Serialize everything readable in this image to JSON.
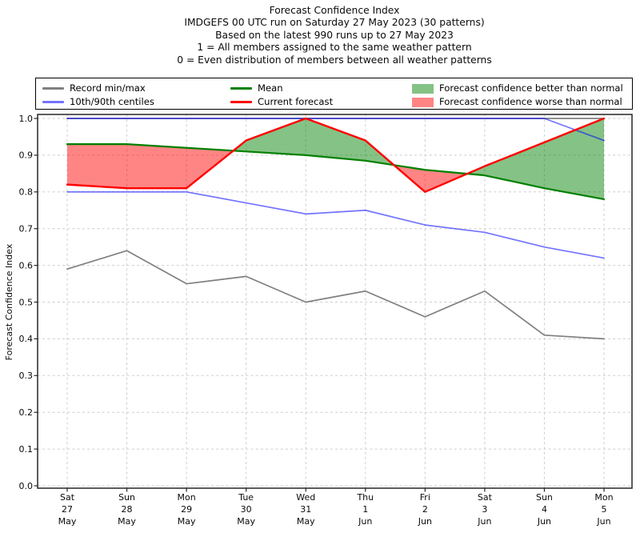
{
  "header": {
    "lines": [
      "Forecast Confidence Index",
      "IMDGEFS 00 UTC run on Saturday 27 May 2023 (30 patterns)",
      "Based on the latest 990 runs up to 27 May 2023",
      "1 = All members assigned to the same weather pattern",
      "0 = Even distribution of members between all weather patterns"
    ]
  },
  "legend": {
    "entries": [
      {
        "label": "Record min/max",
        "swatch": "line",
        "color": "#808080",
        "row": 0,
        "col": 0
      },
      {
        "label": "10th/90th centiles",
        "swatch": "line",
        "color": "rgba(0,0,255,0.55)",
        "row": 1,
        "col": 0
      },
      {
        "label": "Mean",
        "swatch": "line",
        "color": "#008000",
        "row": 0,
        "col": 1
      },
      {
        "label": "Current forecast",
        "swatch": "line",
        "color": "#ff0000",
        "row": 1,
        "col": 1
      },
      {
        "label": "Forecast confidence better than normal",
        "swatch": "patch",
        "color": "rgba(0,128,0,0.48)",
        "row": 0,
        "col": 2
      },
      {
        "label": "Forecast confidence worse than normal",
        "swatch": "patch",
        "color": "rgba(255,0,0,0.48)",
        "row": 1,
        "col": 2
      }
    ]
  },
  "chart_data": {
    "type": "line",
    "title": "Forecast Confidence Index",
    "xlabel": "",
    "ylabel": "Forecast Confidence Index",
    "ylim": [
      0.0,
      1.01
    ],
    "grid": true,
    "legend_position": "top",
    "yticks": [
      0.0,
      0.1,
      0.2,
      0.3,
      0.4,
      0.5,
      0.6,
      0.7,
      0.8,
      0.9,
      1.0
    ],
    "categories": [
      [
        "Sat",
        "27",
        "May"
      ],
      [
        "Sun",
        "28",
        "May"
      ],
      [
        "Mon",
        "29",
        "May"
      ],
      [
        "Tue",
        "30",
        "May"
      ],
      [
        "Wed",
        "31",
        "May"
      ],
      [
        "Thu",
        "1",
        "Jun"
      ],
      [
        "Fri",
        "2",
        "Jun"
      ],
      [
        "Sat",
        "3",
        "Jun"
      ],
      [
        "Sun",
        "4",
        "Jun"
      ],
      [
        "Mon",
        "5",
        "Jun"
      ]
    ],
    "series": [
      {
        "name": "Record max",
        "legend_group": "Record min/max",
        "color": "#808080",
        "width": 1.7,
        "values": [
          1.0,
          1.0,
          1.0,
          1.0,
          1.0,
          1.0,
          1.0,
          1.0,
          1.0,
          1.0
        ]
      },
      {
        "name": "Record min",
        "legend_group": "Record min/max",
        "color": "#808080",
        "width": 1.7,
        "values": [
          0.59,
          0.64,
          0.55,
          0.57,
          0.5,
          0.53,
          0.46,
          0.53,
          0.41,
          0.4
        ]
      },
      {
        "name": "90th centile",
        "legend_group": "10th/90th centiles",
        "color": "rgba(0,0,255,0.55)",
        "width": 1.7,
        "values": [
          1.0,
          1.0,
          1.0,
          1.0,
          1.0,
          1.0,
          1.0,
          1.0,
          1.0,
          0.94
        ]
      },
      {
        "name": "10th centile",
        "legend_group": "10th/90th centiles",
        "color": "rgba(0,0,255,0.55)",
        "width": 1.7,
        "values": [
          0.8,
          0.8,
          0.8,
          0.77,
          0.74,
          0.75,
          0.71,
          0.69,
          0.65,
          0.62
        ]
      },
      {
        "name": "Mean",
        "legend_group": "Mean",
        "color": "#008000",
        "width": 2.2,
        "values": [
          0.93,
          0.93,
          0.92,
          0.91,
          0.9,
          0.885,
          0.86,
          0.845,
          0.81,
          0.78
        ]
      },
      {
        "name": "Current forecast",
        "legend_group": "Current forecast",
        "color": "#ff0000",
        "width": 2.4,
        "values": [
          0.82,
          0.81,
          0.81,
          0.94,
          1.0,
          0.94,
          0.8,
          0.87,
          0.935,
          1.0
        ]
      }
    ],
    "fills": {
      "between": [
        "Current forecast",
        "Mean"
      ],
      "better_label": "Forecast confidence better than normal",
      "worse_label": "Forecast confidence worse than normal",
      "better_color": "rgba(0,128,0,0.48)",
      "worse_color": "rgba(255,0,0,0.48)"
    }
  }
}
